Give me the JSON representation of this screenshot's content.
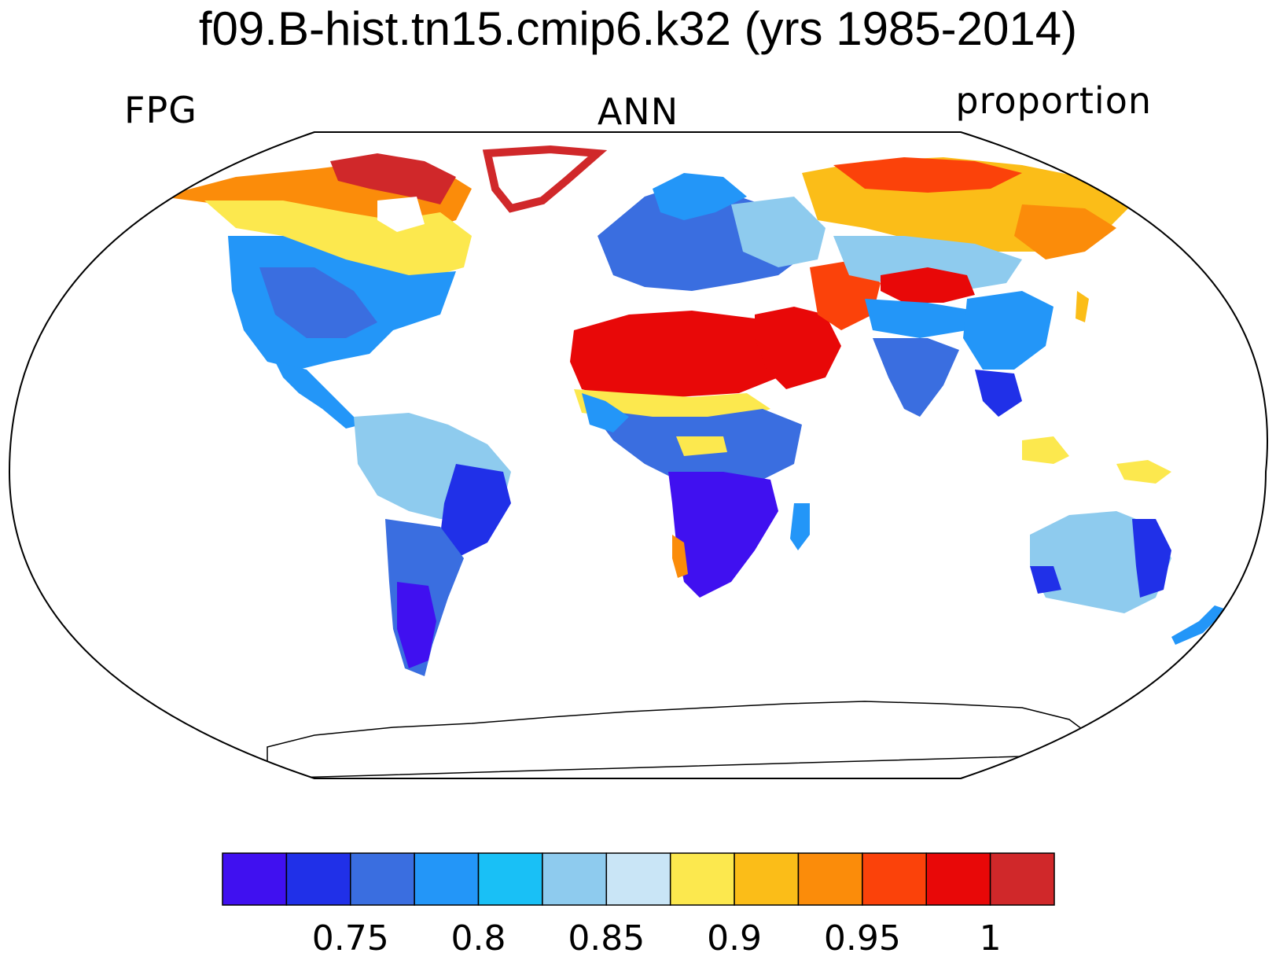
{
  "title": "f09.B-hist.tn15.cmip6.k32 (yrs 1985-2014)",
  "subtitle_left": "FPG",
  "subtitle_center": "ANN",
  "subtitle_right": "proportion",
  "colorbar": {
    "colors": [
      "#4010f0",
      "#2030e8",
      "#3a6ee0",
      "#2396f8",
      "#19c0f6",
      "#8ecbee",
      "#c9e5f6",
      "#fce84e",
      "#fbbd18",
      "#fb8c0a",
      "#fb420a",
      "#e80808",
      "#d0282a"
    ],
    "tick_labels": [
      "0.75",
      "0.8",
      "0.85",
      "0.9",
      "0.95",
      "1"
    ]
  },
  "map": {
    "projection": "Robinson",
    "ocean_color": "#ffffff"
  }
}
